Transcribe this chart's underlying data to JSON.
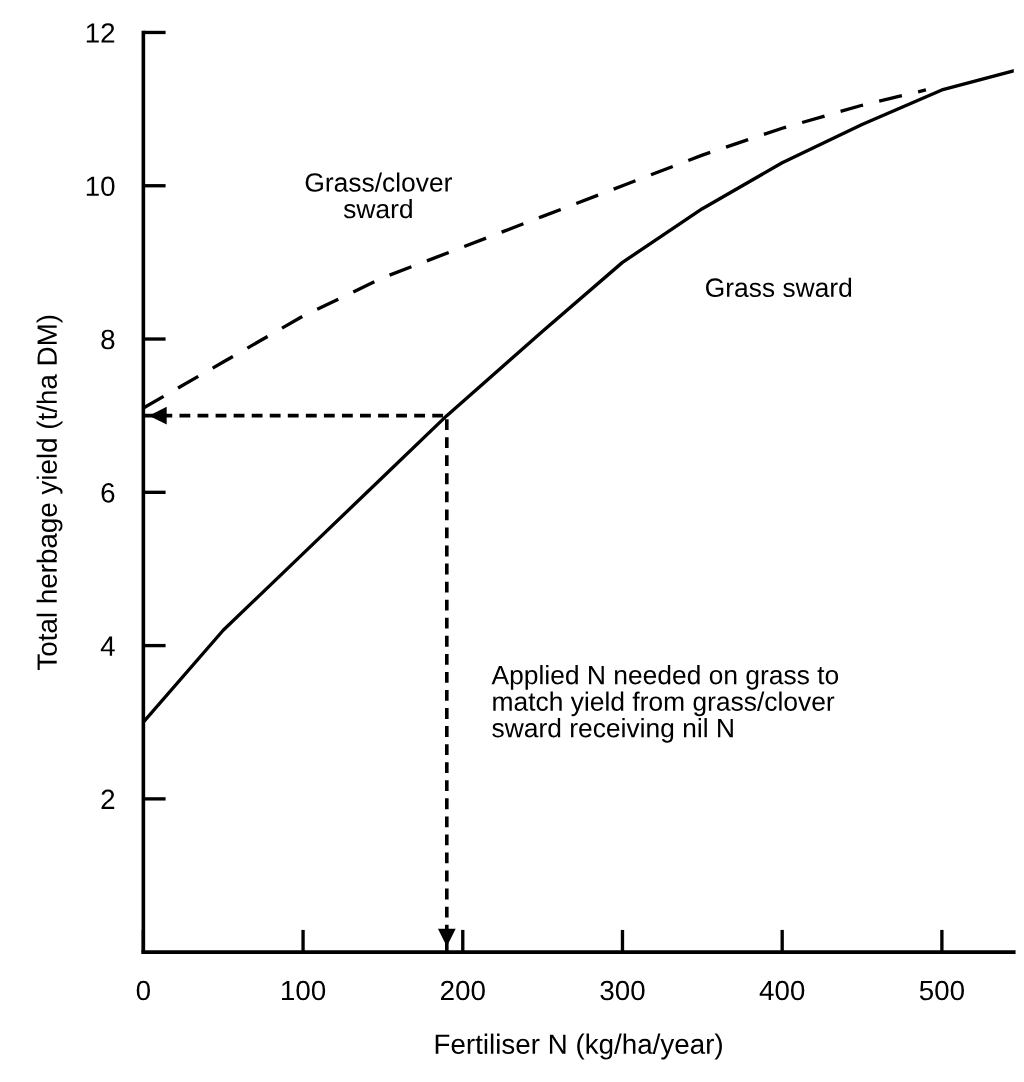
{
  "chart_data": {
    "type": "line",
    "xlabel": "Fertiliser N (kg/ha/year)",
    "ylabel": "Total herbage yield (t/ha DM)",
    "series": [
      {
        "color": "#000000",
        "line_style": "solid",
        "x": [
          0,
          50,
          100,
          150,
          190,
          250,
          300,
          350,
          400,
          450,
          500,
          545
        ],
        "values": [
          3.0,
          4.2,
          5.2,
          6.2,
          7.0,
          8.1,
          9.0,
          9.7,
          10.3,
          10.8,
          11.25,
          11.5
        ]
      },
      {
        "color": "#000000",
        "line_style": "dashed",
        "x": [
          0,
          50,
          100,
          150,
          200,
          250,
          300,
          350,
          400,
          450,
          490
        ],
        "values": [
          7.1,
          7.7,
          8.3,
          8.8,
          9.2,
          9.6,
          10.0,
          10.4,
          10.75,
          11.05,
          11.25
        ]
      },
      {
        "color": "#000000",
        "line_style": "dotted",
        "x": [
          0,
          190,
          190
        ],
        "values": [
          7.0,
          7.0,
          0.0
        ]
      }
    ],
    "annotations": [
      "Grass/clover\nsward",
      "Grass sward",
      "Applied N needed on grass to\nmatch yield from grass/clover\nsward receiving nil N"
    ],
    "xlim": [
      0,
      545
    ],
    "ylim": [
      0,
      12
    ],
    "xticks": [
      0,
      100,
      200,
      300,
      400,
      500
    ],
    "yticks": [
      2,
      4,
      6,
      8,
      10,
      12
    ],
    "grid": false,
    "legend": false,
    "marker": "none"
  }
}
